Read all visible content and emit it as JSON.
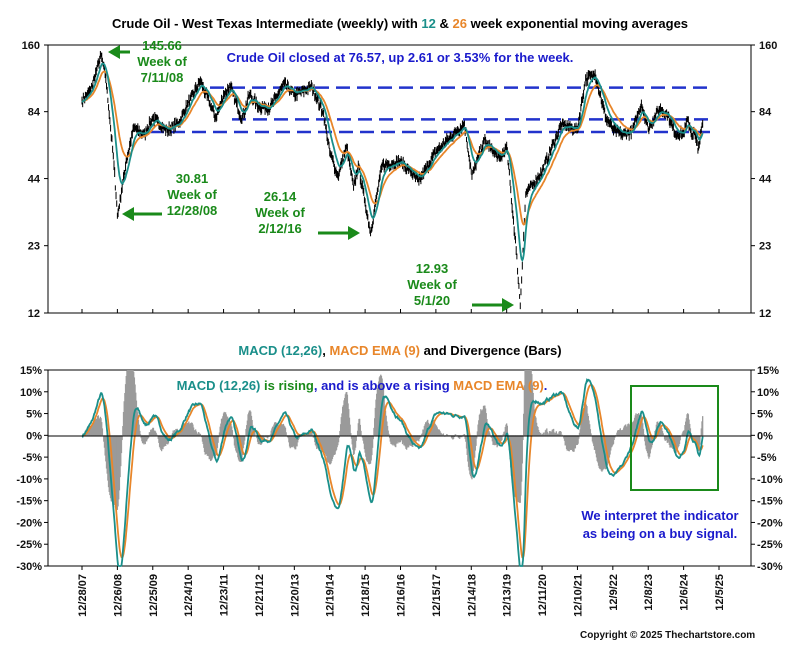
{
  "colors": {
    "price": "#000000",
    "ema_fast": "#1a8f8a",
    "ema_slow": "#e8862a",
    "macd": "#1a8f8a",
    "signal": "#e8862a",
    "hist": "#9a9a9a",
    "band": "#2233cc",
    "annotation_green": "#1a8a1a",
    "note_blue": "#1a1acc"
  },
  "header": {
    "title_a": "Crude Oil - West Texas Intermediate (weekly) with ",
    "title_n12": "12",
    "title_amp": " & ",
    "title_n26": "26",
    "title_b": " week exponential moving averages",
    "close_note": "Crude Oil closed at 76.57, up 2.61 or 3.53% for the week."
  },
  "macd_header": {
    "part1": "MACD (12,26)",
    "part2": ", ",
    "part3": "MACD EMA (9)",
    "part4": " and Divergence (Bars)"
  },
  "macd_note": {
    "p1": "MACD (12,26)",
    "p2": " is rising",
    "p3": ", and is above a rising ",
    "p4": "MACD EMA (9)",
    "p5": "."
  },
  "interpret": {
    "line1": "We interpret the indicator",
    "line2": "as being on a buy signal."
  },
  "annotations": [
    {
      "value": "145.66",
      "line2": "Week of",
      "line3": "7/11/08",
      "arrow": "left"
    },
    {
      "value": "30.81",
      "line2": "Week of",
      "line3": "12/28/08",
      "arrow": "left"
    },
    {
      "value": "26.14",
      "line2": "Week of",
      "line3": "2/12/16",
      "arrow": "right"
    },
    {
      "value": "12.93",
      "line2": "Week of",
      "line3": "5/1/20",
      "arrow": "right"
    }
  ],
  "copyright": "Copyright © 2025 Thechartstore.com",
  "chart_data": [
    {
      "type": "line",
      "title": "Crude Oil - West Texas Intermediate (weekly) with 12 & 26 week exponential moving averages",
      "y_scale": "log",
      "ylim": [
        12,
        160
      ],
      "y_ticks": [
        160,
        84,
        44,
        23,
        12
      ],
      "x_range": [
        "2007-12-28",
        "2025-12-05"
      ],
      "x_ticks": [
        "12/28/07",
        "12/26/08",
        "12/25/09",
        "12/24/10",
        "12/23/11",
        "12/21/12",
        "12/20/13",
        "12/19/14",
        "12/18/15",
        "12/16/16",
        "12/15/17",
        "12/14/18",
        "12/13/19",
        "12/11/20",
        "12/10/21",
        "12/9/22",
        "12/8/23",
        "12/6/24",
        "12/5/25"
      ],
      "horizontal_bands": [
        106,
        78,
        69
      ],
      "series": [
        {
          "name": "WTI weekly close",
          "points": [
            [
              "2007-12-28",
              93
            ],
            [
              "2008-03-28",
              104
            ],
            [
              "2008-05-30",
              127
            ],
            [
              "2008-07-11",
              145.66
            ],
            [
              "2008-08-29",
              116
            ],
            [
              "2008-10-10",
              78
            ],
            [
              "2008-11-21",
              50
            ],
            [
              "2008-12-28",
              30.81
            ],
            [
              "2009-03-27",
              52
            ],
            [
              "2009-06-12",
              72
            ],
            [
              "2009-09-25",
              67
            ],
            [
              "2009-12-25",
              79
            ],
            [
              "2010-05-21",
              70
            ],
            [
              "2010-09-24",
              76
            ],
            [
              "2010-12-24",
              91
            ],
            [
              "2011-04-29",
              113
            ],
            [
              "2011-10-07",
              79
            ],
            [
              "2011-12-23",
              99
            ],
            [
              "2012-03-02",
              107
            ],
            [
              "2012-06-29",
              78
            ],
            [
              "2012-09-14",
              99
            ],
            [
              "2012-12-21",
              88
            ],
            [
              "2013-04-19",
              88
            ],
            [
              "2013-09-06",
              110
            ],
            [
              "2013-12-20",
              99
            ],
            [
              "2014-06-20",
              107
            ],
            [
              "2014-10-17",
              82
            ],
            [
              "2014-12-19",
              57
            ],
            [
              "2015-03-13",
              45
            ],
            [
              "2015-06-12",
              60
            ],
            [
              "2015-08-21",
              40
            ],
            [
              "2015-10-09",
              50
            ],
            [
              "2015-12-18",
              35
            ],
            [
              "2016-02-12",
              26.14
            ],
            [
              "2016-06-10",
              50
            ],
            [
              "2016-12-16",
              52
            ],
            [
              "2017-06-23",
              43
            ],
            [
              "2017-12-15",
              57
            ],
            [
              "2018-10-05",
              75
            ],
            [
              "2018-12-21",
              45
            ],
            [
              "2019-04-26",
              64
            ],
            [
              "2019-10-04",
              53
            ],
            [
              "2019-12-13",
              60
            ],
            [
              "2020-03-20",
              22
            ],
            [
              "2020-05-01",
              12.93
            ],
            [
              "2020-06-26",
              38
            ],
            [
              "2020-12-11",
              47
            ],
            [
              "2021-06-25",
              74
            ],
            [
              "2021-12-10",
              71
            ],
            [
              "2022-03-04",
              115
            ],
            [
              "2022-06-10",
              121
            ],
            [
              "2022-09-30",
              79
            ],
            [
              "2022-12-09",
              71
            ],
            [
              "2023-03-17",
              67
            ],
            [
              "2023-06-30",
              70
            ],
            [
              "2023-09-29",
              91
            ],
            [
              "2023-12-08",
              71
            ],
            [
              "2024-04-05",
              87
            ],
            [
              "2024-06-28",
              81
            ],
            [
              "2024-09-13",
              68
            ],
            [
              "2024-12-06",
              68
            ],
            [
              "2025-01-17",
              78
            ],
            [
              "2025-03-07",
              67
            ],
            [
              "2025-03-28",
              69
            ],
            [
              "2025-05-02",
              58
            ],
            [
              "2025-06-20",
              75
            ]
          ]
        },
        {
          "name": "12 week EMA",
          "points": []
        },
        {
          "name": "26 week EMA",
          "points": []
        }
      ]
    },
    {
      "type": "line",
      "title": "MACD (12,26), MACD EMA (9) and Divergence (Bars)",
      "y_unit": "%",
      "ylim": [
        -30,
        15
      ],
      "y_ticks": [
        15,
        10,
        5,
        0,
        -5,
        -10,
        -15,
        -20,
        -25,
        -30
      ],
      "series": [
        {
          "name": "MACD (12,26)"
        },
        {
          "name": "MACD EMA (9)"
        },
        {
          "name": "Divergence (Bars)"
        }
      ]
    }
  ]
}
